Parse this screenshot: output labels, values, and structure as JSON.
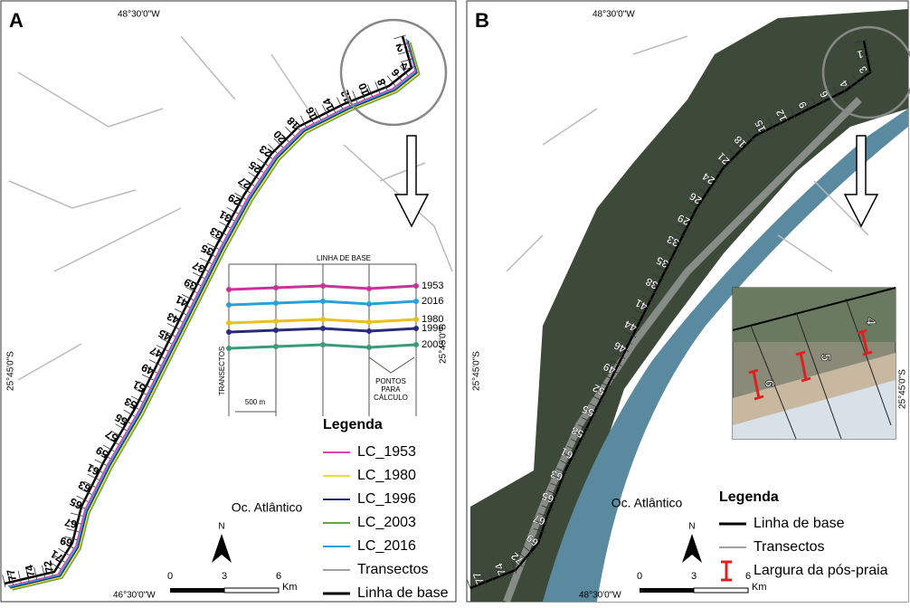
{
  "panels": [
    {
      "letter": "A",
      "coord_top": "48°30'0\"W",
      "coord_bottom": "46°30'0\"W",
      "coord_left": "25°45'0\"S",
      "ocean": "Oc. Atlântico",
      "north": "N",
      "scale": {
        "labels": [
          "0",
          "3",
          "6"
        ],
        "unit": "Km"
      },
      "transects": [
        "2",
        "4",
        "6",
        "8",
        "10",
        "12",
        "14",
        "16",
        "18",
        "20",
        "23",
        "25",
        "27",
        "29",
        "31",
        "33",
        "35",
        "37",
        "39",
        "41",
        "43",
        "45",
        "47",
        "49",
        "51",
        "53",
        "55",
        "57",
        "59",
        "61",
        "63",
        "65",
        "67",
        "69",
        "71",
        "72",
        "74",
        "77"
      ],
      "legend": {
        "title": "Legenda",
        "items": [
          {
            "label": "LC_1953",
            "color": "#e040a8"
          },
          {
            "label": "LC_1980",
            "color": "#e8e030"
          },
          {
            "label": "LC_1996",
            "color": "#1a2a6a"
          },
          {
            "label": "LC_2003",
            "color": "#6aa04a"
          },
          {
            "label": "LC_2016",
            "color": "#20a0e0"
          },
          {
            "label": "Transectos",
            "color": "#444444"
          },
          {
            "label": "Linha de base",
            "color": "#000000"
          }
        ]
      },
      "inset": {
        "top": "LINHA DE BASE",
        "left": "TRANSECTOS",
        "scale": "500 m",
        "points": [
          "PONTOS",
          "PARA",
          "CÁLCULO"
        ],
        "coord_right": "25°45'0\"S",
        "years": [
          {
            "label": "1953",
            "color": "#c8329a"
          },
          {
            "label": "2016",
            "color": "#2aa0d8"
          },
          {
            "label": "1980",
            "color": "#e8c020"
          },
          {
            "label": "1996",
            "color": "#2a2a7a"
          },
          {
            "label": "2003",
            "color": "#3a9a7a"
          }
        ]
      }
    },
    {
      "letter": "B",
      "coord_top": "48°30'0\"W",
      "coord_bottom": "48°30'0\"W",
      "coord_left": "25°45'0\"S",
      "ocean": "Oc. Atlântico",
      "north": "N",
      "scale": {
        "labels": [
          "0",
          "3",
          "6"
        ],
        "unit": "Km"
      },
      "transects": [
        "1",
        "3",
        "4",
        "6",
        "9",
        "12",
        "15",
        "18",
        "21",
        "24",
        "26",
        "29",
        "33",
        "35",
        "38",
        "41",
        "44",
        "46",
        "49",
        "52",
        "55",
        "58",
        "61",
        "63",
        "65",
        "67",
        "69",
        "72",
        "74",
        "77"
      ],
      "legend": {
        "title": "Legenda",
        "items": [
          {
            "label": "Linha de base",
            "color": "#000000"
          },
          {
            "label": "Transectos",
            "color": "#444444"
          },
          {
            "label": "Largura da pós-praia",
            "color": "#e02020"
          }
        ]
      },
      "inset": {
        "labels": [
          "4",
          "5",
          "6"
        ],
        "coord_right": "25°45'0\"S"
      }
    }
  ]
}
